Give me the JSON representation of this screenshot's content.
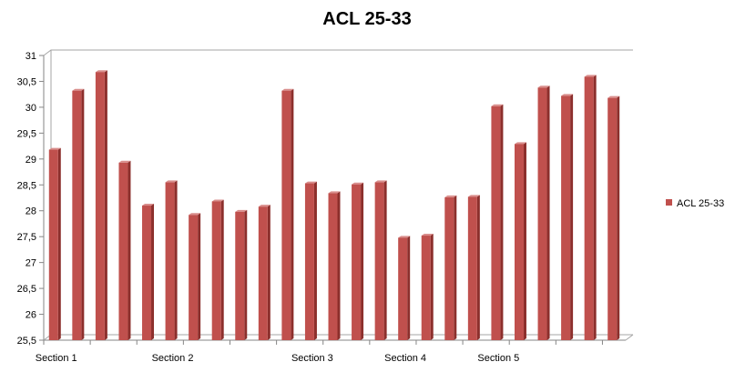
{
  "chart_data": {
    "type": "bar",
    "title": "ACL 25-33",
    "xlabel": "",
    "ylabel": "",
    "ylim": [
      25.5,
      31
    ],
    "ytick_step": 0.5,
    "ytick_labels": [
      "25,5",
      "26",
      "26,5",
      "27",
      "27,5",
      "28",
      "28,5",
      "29",
      "29,5",
      "30",
      "30,5",
      "31"
    ],
    "category_labels": [
      {
        "index": 0,
        "label": "Section 1"
      },
      {
        "index": 5,
        "label": "Section 2"
      },
      {
        "index": 11,
        "label": "Section 3"
      },
      {
        "index": 15,
        "label": "Section 4"
      },
      {
        "index": 19,
        "label": "Section 5"
      }
    ],
    "series": [
      {
        "name": "ACL 25-33",
        "color": "#c0504d",
        "values": [
          29.18,
          30.32,
          30.68,
          28.93,
          28.1,
          28.55,
          27.92,
          28.18,
          27.98,
          28.08,
          30.32,
          28.53,
          28.34,
          28.51,
          28.55,
          27.48,
          27.52,
          28.26,
          28.27,
          30.02,
          29.29,
          30.38,
          30.22,
          30.59,
          30.18
        ]
      }
    ],
    "grid": false,
    "legend": "right"
  }
}
